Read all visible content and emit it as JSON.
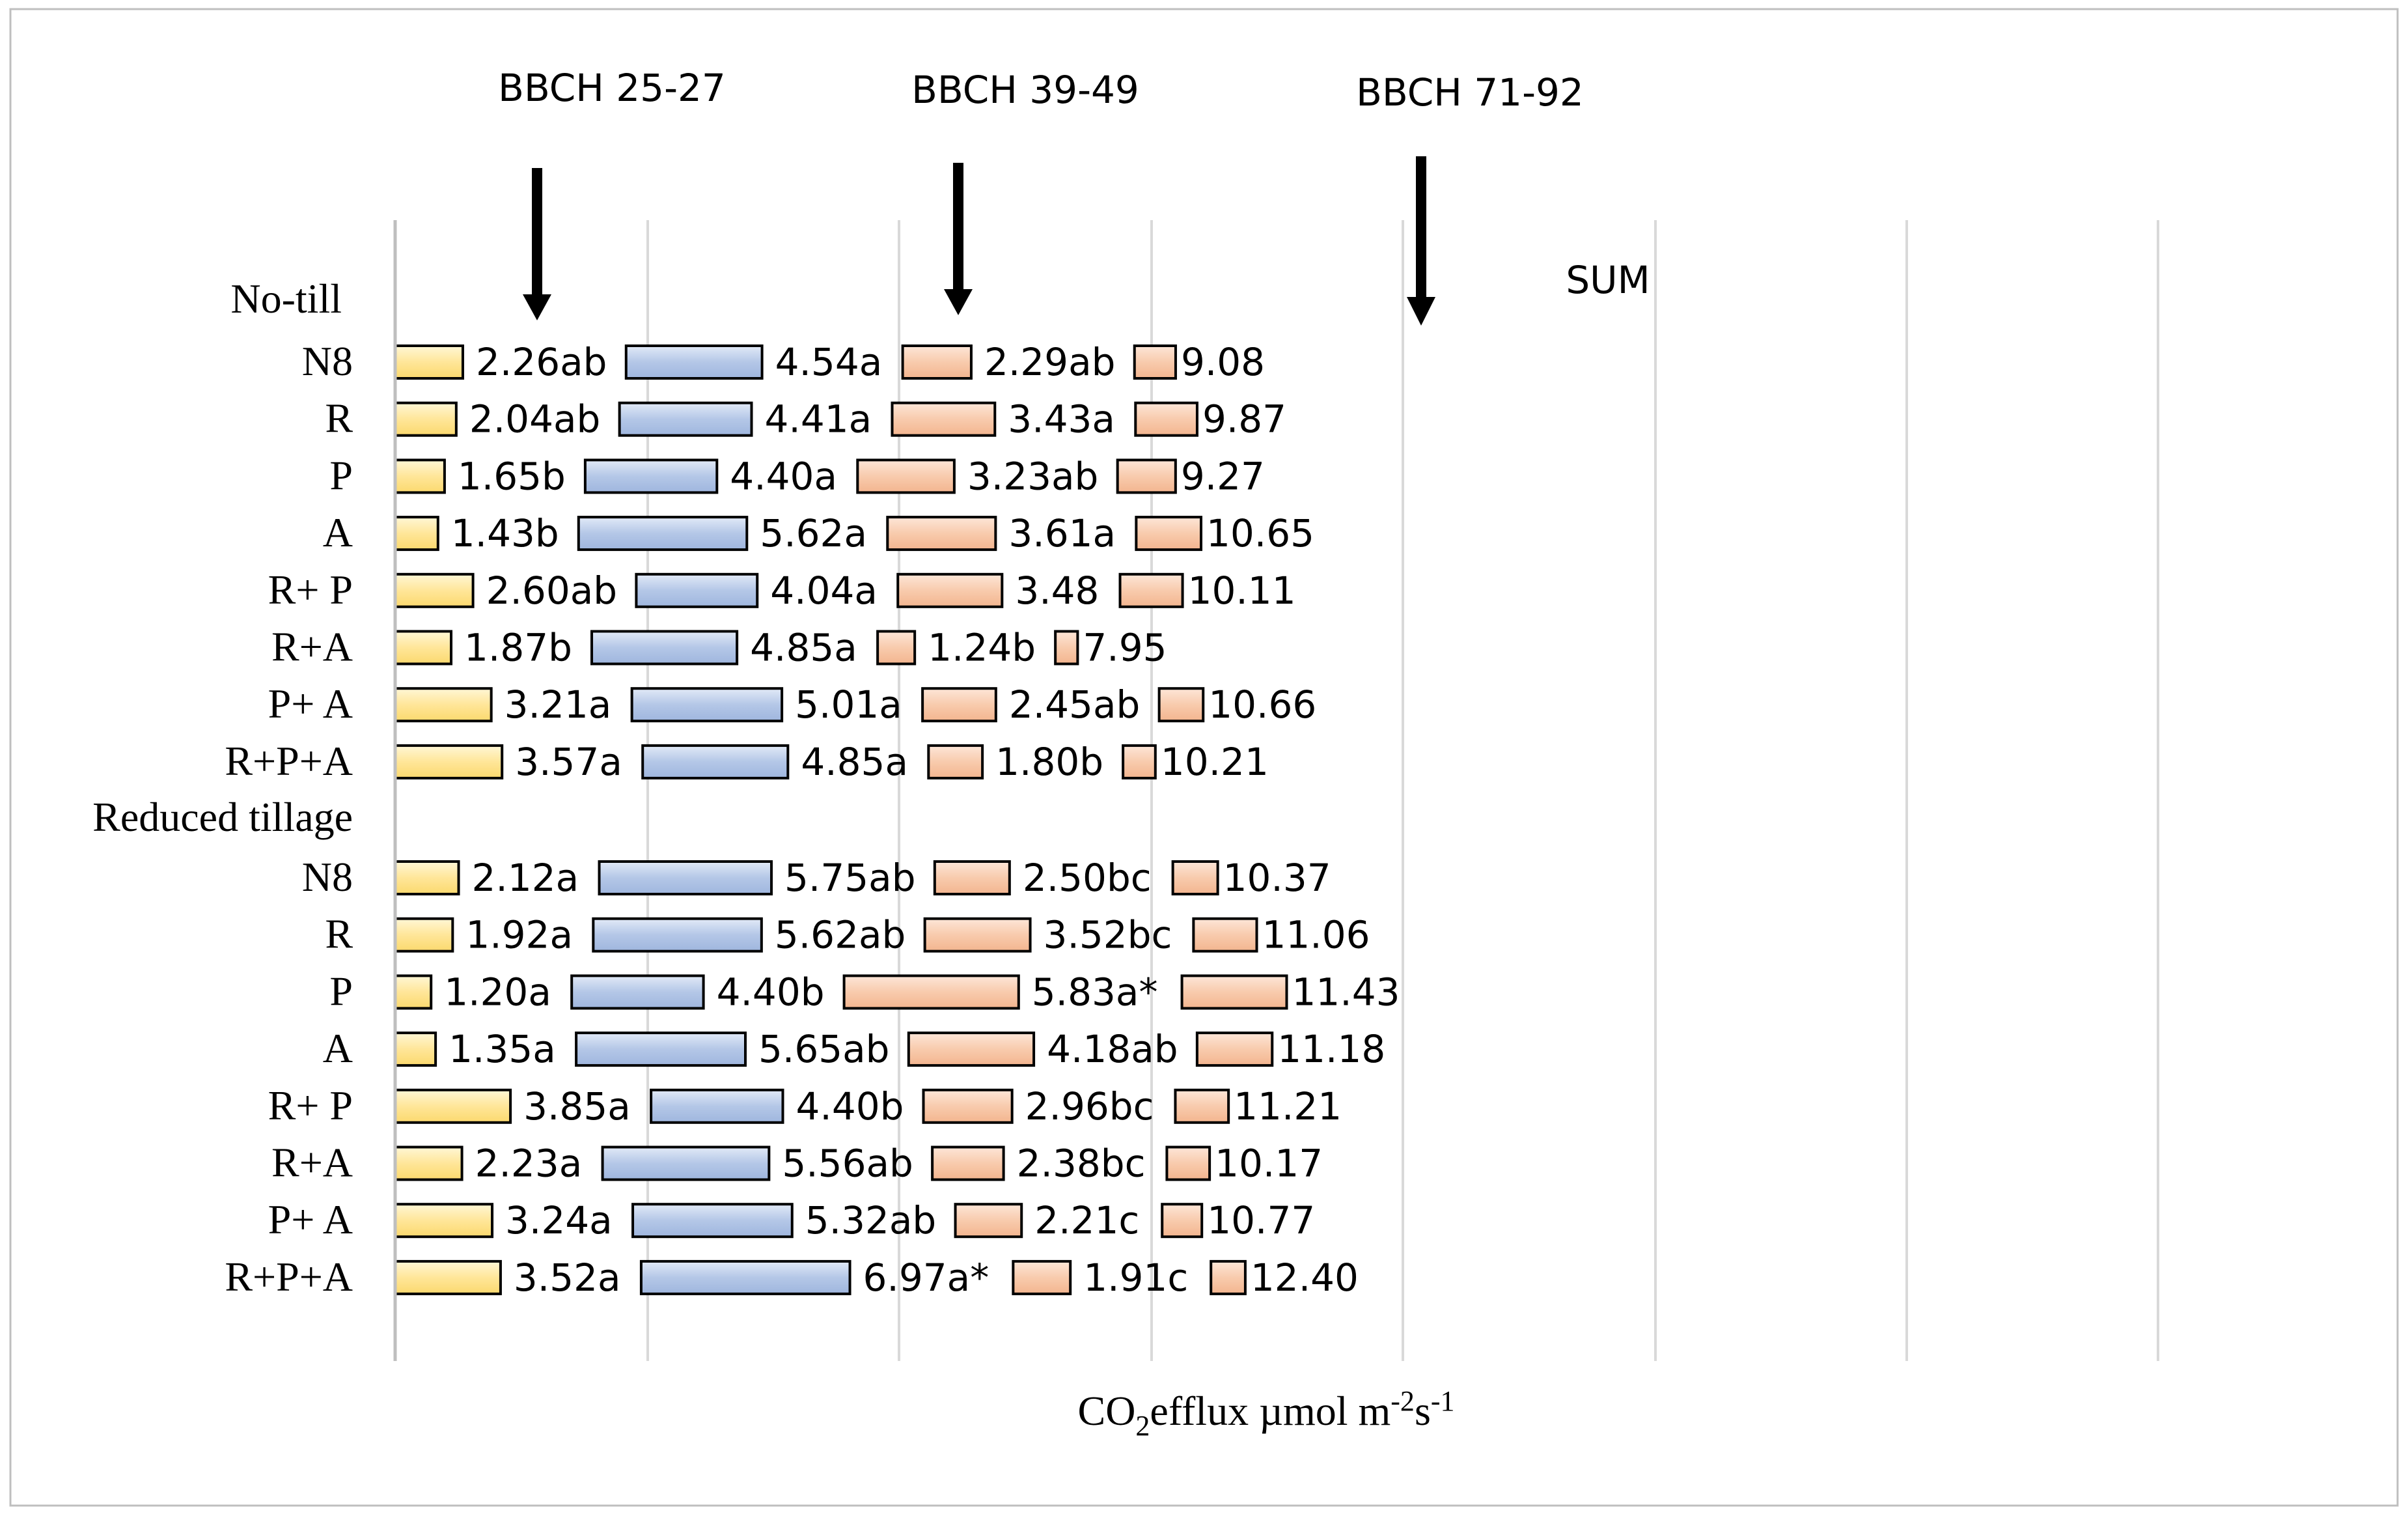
{
  "chart_data": {
    "type": "bar",
    "subtype": "horizontal-stacked-sequential",
    "xlabel": "CO",
    "xlabel_sub": "2",
    "xlabel_rest": "efflux µmol m",
    "xlabel_exp1": "-2",
    "xlabel_mid": "s",
    "xlabel_exp2": "-1",
    "sum_label": "SUM",
    "stages": [
      {
        "name": "BBCH 25-27",
        "color": "#ffe699"
      },
      {
        "name": "BBCH 39-49",
        "color": "#b4c7e7"
      },
      {
        "name": "BBCH 71-92",
        "color": "#f8cbad"
      }
    ],
    "groups": [
      {
        "name": "No-till",
        "rows": [
          {
            "label": "N8",
            "values": [
              2.26,
              4.54,
              2.29
            ],
            "labels": [
              "2.26ab",
              "4.54a",
              "2.29ab"
            ],
            "sum": "9.08"
          },
          {
            "label": "R",
            "values": [
              2.04,
              4.41,
              3.43
            ],
            "labels": [
              "2.04ab",
              "4.41a",
              "3.43a"
            ],
            "sum": "9.87"
          },
          {
            "label": "P",
            "values": [
              1.65,
              4.4,
              3.23
            ],
            "labels": [
              "1.65b",
              "4.40a",
              "3.23ab"
            ],
            "sum": "9.27"
          },
          {
            "label": "A",
            "values": [
              1.43,
              5.62,
              3.61
            ],
            "labels": [
              "1.43b",
              "5.62a",
              "3.61a"
            ],
            "sum": "10.65"
          },
          {
            "label": "R+ P",
            "values": [
              2.6,
              4.04,
              3.48
            ],
            "labels": [
              "2.60ab",
              "4.04a",
              "3.48"
            ],
            "sum": "10.11"
          },
          {
            "label": "R+A",
            "values": [
              1.87,
              4.85,
              1.24
            ],
            "labels": [
              "1.87b",
              "4.85a",
              "1.24b"
            ],
            "sum": "7.95"
          },
          {
            "label": "P+ A",
            "values": [
              3.21,
              5.01,
              2.45
            ],
            "labels": [
              "3.21a",
              "5.01a",
              "2.45ab"
            ],
            "sum": "10.66"
          },
          {
            "label": "R+P+A",
            "values": [
              3.57,
              4.85,
              1.8
            ],
            "labels": [
              "3.57a",
              "4.85a",
              "1.80b"
            ],
            "sum": "10.21"
          }
        ]
      },
      {
        "name": "Reduced tillage",
        "rows": [
          {
            "label": "N8",
            "values": [
              2.12,
              5.75,
              2.5
            ],
            "labels": [
              "2.12a",
              "5.75ab",
              "2.50bc"
            ],
            "sum": "10.37"
          },
          {
            "label": "R",
            "values": [
              1.92,
              5.62,
              3.52
            ],
            "labels": [
              "1.92a",
              "5.62ab",
              "3.52bc"
            ],
            "sum": "11.06"
          },
          {
            "label": "P",
            "values": [
              1.2,
              4.4,
              5.83
            ],
            "labels": [
              "1.20a",
              "4.40b",
              "5.83a*"
            ],
            "sum": "11.43"
          },
          {
            "label": "A",
            "values": [
              1.35,
              5.65,
              4.18
            ],
            "labels": [
              "1.35a",
              "5.65ab",
              "4.18ab"
            ],
            "sum": "11.18"
          },
          {
            "label": "R+ P",
            "values": [
              3.85,
              4.4,
              2.96
            ],
            "labels": [
              "3.85a",
              "4.40b",
              "2.96bc"
            ],
            "sum": "11.21"
          },
          {
            "label": "R+A",
            "values": [
              2.23,
              5.56,
              2.38
            ],
            "labels": [
              "2.23a",
              "5.56ab",
              "2.38bc"
            ],
            "sum": "10.17"
          },
          {
            "label": "P+ A",
            "values": [
              3.24,
              5.32,
              2.21
            ],
            "labels": [
              "3.24a",
              "5.32ab",
              "2.21c"
            ],
            "sum": "10.77"
          },
          {
            "label": "R+P+A",
            "values": [
              3.52,
              6.97,
              1.91
            ],
            "labels": [
              "3.52a",
              "6.97a*",
              "1.91c"
            ],
            "sum": "12.40"
          }
        ]
      }
    ],
    "grid": true,
    "legend": "none"
  },
  "colors": {
    "frame": "#bfbfbf",
    "grid": "#d9d9d9",
    "axis": "#bfbfbf",
    "bar_stroke": "#000000",
    "text": "#000000",
    "arrow": "#000000"
  }
}
